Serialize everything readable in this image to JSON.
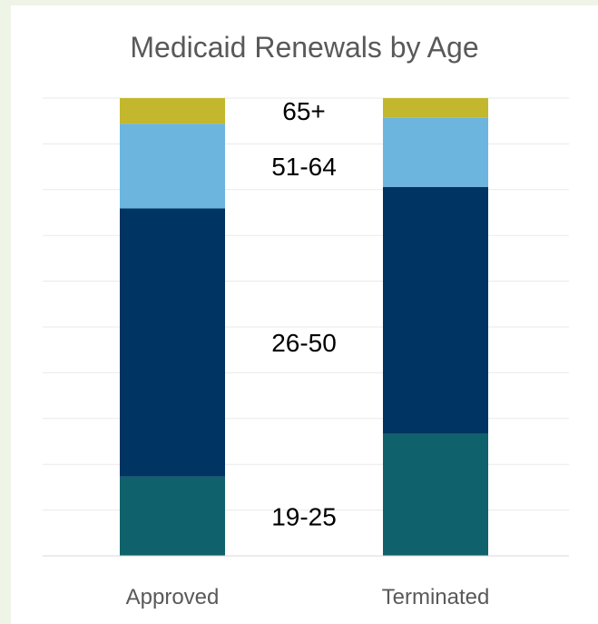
{
  "chart_data": {
    "type": "bar",
    "stacked": true,
    "normalized_percent": true,
    "title": "Medicaid Renewals by Age",
    "categories": [
      "Approved",
      "Terminated"
    ],
    "ylim": [
      0,
      100
    ],
    "grid": true,
    "series": [
      {
        "name": "19-25",
        "color": "#0f626b",
        "values": [
          17.3,
          26.7
        ]
      },
      {
        "name": "26-50",
        "color": "#003462",
        "values": [
          58.6,
          53.9
        ]
      },
      {
        "name": "51-64",
        "color": "#6bb5df",
        "values": [
          18.5,
          15.1
        ]
      },
      {
        "name": "65+",
        "color": "#c3b82d",
        "values": [
          5.6,
          4.3
        ]
      }
    ]
  }
}
